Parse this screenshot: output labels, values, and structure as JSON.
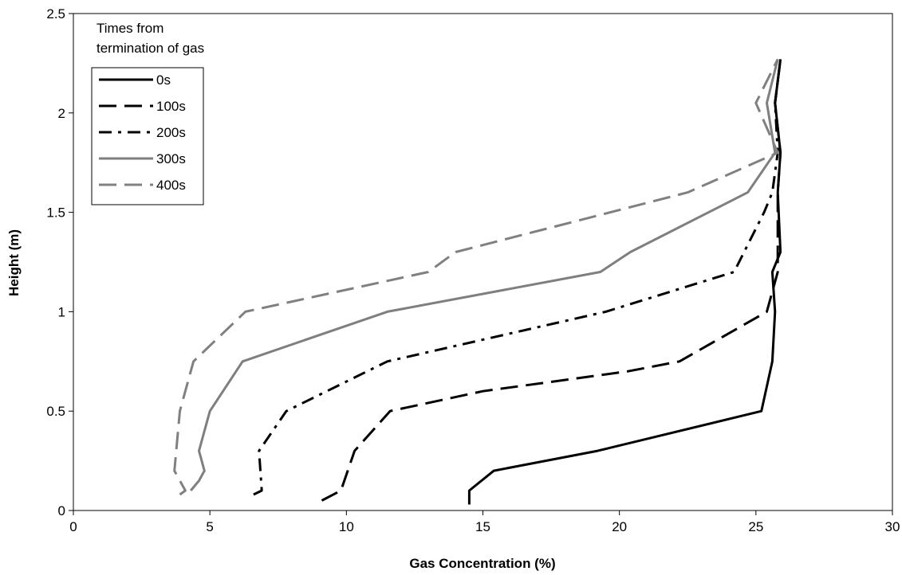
{
  "chart_data": {
    "type": "line",
    "xlabel": "Gas Concentration (%)",
    "ylabel": "Height (m)",
    "xlim": [
      0,
      30
    ],
    "ylim": [
      0,
      2.5
    ],
    "xticks": [
      "0",
      "5",
      "10",
      "15",
      "20",
      "25",
      "30"
    ],
    "yticks": [
      "0",
      "0.5",
      "1",
      "1.5",
      "2",
      "2.5"
    ],
    "grid": false,
    "legend": {
      "title_line1": "Times from",
      "title_line2": "termination of gas",
      "placement": "top-left"
    },
    "series": [
      {
        "name": "0s",
        "color": "#000000",
        "style": "solid",
        "points": [
          [
            14.5,
            0.03
          ],
          [
            14.5,
            0.1
          ],
          [
            15.4,
            0.2
          ],
          [
            19.2,
            0.3
          ],
          [
            25.2,
            0.5
          ],
          [
            25.6,
            0.75
          ],
          [
            25.7,
            1.0
          ],
          [
            25.6,
            1.2
          ],
          [
            25.9,
            1.3
          ],
          [
            25.8,
            1.6
          ],
          [
            25.9,
            1.8
          ],
          [
            25.7,
            2.05
          ],
          [
            25.9,
            2.27
          ]
        ]
      },
      {
        "name": "100s",
        "color": "#000000",
        "style": "dashed",
        "points": [
          [
            9.1,
            0.05
          ],
          [
            9.8,
            0.1
          ],
          [
            10.3,
            0.3
          ],
          [
            11.6,
            0.5
          ],
          [
            15.0,
            0.6
          ],
          [
            20.3,
            0.7
          ],
          [
            22.2,
            0.75
          ],
          [
            25.4,
            1.0
          ],
          [
            25.8,
            1.2
          ],
          [
            25.8,
            1.3
          ],
          [
            25.8,
            1.6
          ],
          [
            25.9,
            1.8
          ],
          [
            25.7,
            2.05
          ],
          [
            25.9,
            2.27
          ]
        ]
      },
      {
        "name": "200s",
        "color": "#000000",
        "style": "dashdot",
        "points": [
          [
            6.6,
            0.08
          ],
          [
            6.9,
            0.1
          ],
          [
            6.8,
            0.3
          ],
          [
            7.8,
            0.5
          ],
          [
            11.5,
            0.75
          ],
          [
            19.5,
            1.0
          ],
          [
            24.2,
            1.2
          ],
          [
            25.3,
            1.5
          ],
          [
            25.6,
            1.6
          ],
          [
            25.8,
            1.8
          ],
          [
            25.7,
            2.05
          ],
          [
            25.9,
            2.27
          ]
        ]
      },
      {
        "name": "300s",
        "color": "#7f7f7f",
        "style": "solid",
        "points": [
          [
            4.3,
            0.1
          ],
          [
            4.6,
            0.15
          ],
          [
            4.8,
            0.2
          ],
          [
            4.6,
            0.3
          ],
          [
            5.0,
            0.5
          ],
          [
            6.2,
            0.75
          ],
          [
            11.5,
            1.0
          ],
          [
            19.3,
            1.2
          ],
          [
            20.4,
            1.3
          ],
          [
            24.7,
            1.6
          ],
          [
            25.7,
            1.8
          ],
          [
            25.4,
            2.05
          ],
          [
            25.8,
            2.27
          ]
        ]
      },
      {
        "name": "400s",
        "color": "#808080",
        "style": "dashed",
        "points": [
          [
            3.9,
            0.08
          ],
          [
            4.1,
            0.1
          ],
          [
            3.7,
            0.2
          ],
          [
            3.9,
            0.5
          ],
          [
            4.4,
            0.75
          ],
          [
            6.3,
            1.0
          ],
          [
            13.0,
            1.2
          ],
          [
            14.0,
            1.3
          ],
          [
            22.5,
            1.6
          ],
          [
            25.8,
            1.8
          ],
          [
            25.0,
            2.05
          ],
          [
            25.8,
            2.27
          ]
        ]
      }
    ]
  }
}
